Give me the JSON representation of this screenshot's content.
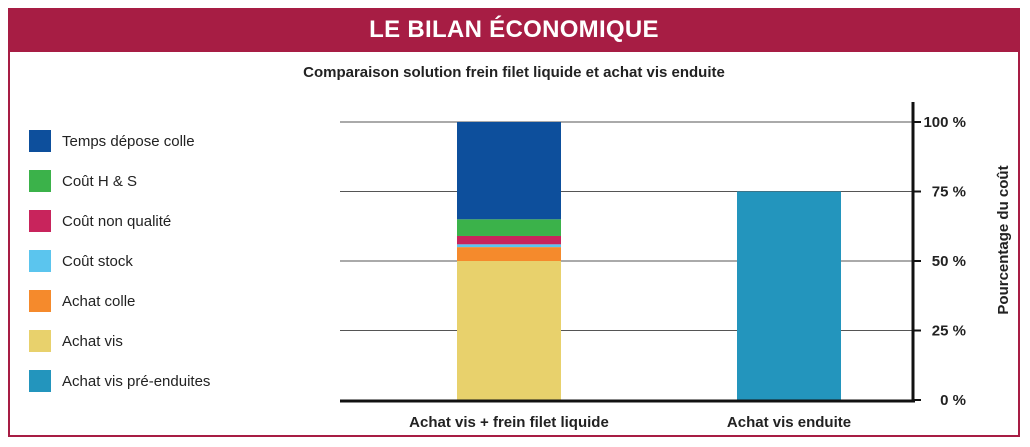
{
  "banner": {
    "title": "LE BILAN ÉCONOMIQUE"
  },
  "colors": {
    "brand": "#a71d44"
  },
  "chart_data": {
    "type": "bar",
    "stacked": true,
    "title": "Comparaison solution frein filet liquide et achat vis enduite",
    "xlabel": "",
    "ylabel": "Pourcentage du coût",
    "ylim": [
      0,
      100
    ],
    "yticks": [
      0,
      25,
      50,
      75,
      100
    ],
    "yticklabels": [
      "0 %",
      "25 %",
      "50 %",
      "75 %",
      "100 %"
    ],
    "grid": true,
    "legend_position": "left",
    "categories": [
      "Achat vis + frein filet liquide",
      "Achat vis enduite"
    ],
    "series": [
      {
        "name": "Achat vis",
        "color": "#e8d16c",
        "values": [
          50,
          0
        ]
      },
      {
        "name": "Achat colle",
        "color": "#f58a2c",
        "values": [
          5,
          0
        ]
      },
      {
        "name": "Coût stock",
        "color": "#5bc5ee",
        "values": [
          1,
          0
        ]
      },
      {
        "name": "Coût non qualité",
        "color": "#c8245c",
        "values": [
          3,
          0
        ]
      },
      {
        "name": "Coût H & S",
        "color": "#3bb24a",
        "values": [
          6,
          0
        ]
      },
      {
        "name": "Temps dépose colle",
        "color": "#0d4f9c",
        "values": [
          35,
          0
        ]
      },
      {
        "name": "Achat vis pré-enduites",
        "color": "#2395bd",
        "values": [
          0,
          75
        ]
      }
    ],
    "legend_order": [
      "Temps dépose colle",
      "Coût H & S",
      "Coût non qualité",
      "Coût stock",
      "Achat colle",
      "Achat vis",
      "Achat vis pré-enduites"
    ]
  }
}
